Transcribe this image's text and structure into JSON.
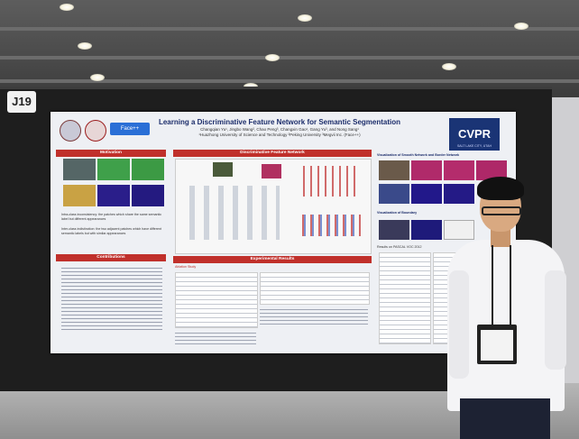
{
  "booth_sign": {
    "label": "J19"
  },
  "poster": {
    "title": "Learning a Discriminative Feature Network for Semantic Segmentation",
    "authors": "Changqian Yu¹, Jingbo Wang², Chao Peng³, Changxin Gao¹, Gang Yu³, and Nong Sang¹",
    "affiliations": "¹Huazhong University of Science and Technology  ²Peking University  ³Megvii Inc. (Face++)",
    "conference_logo": "CVPR",
    "conference_sub": "SALT LAKE CITY, UTAH",
    "sections": {
      "motivation": "Motivation",
      "contributions": "Contributions",
      "dfn": "Discriminative Feature Network",
      "results": "Experimental Results",
      "visualization_top": "Visualization of Smooth Network and Border Network",
      "visualization_bottom": "Visualization of Boundary"
    },
    "motivation_points": [
      "Intra-class inconsistency: the patches which share the same semantic label but different appearances",
      "Inter-class indistinction: the two adjacent patches which have different semantic labels but with similar appearances"
    ],
    "logos": [
      "HUST",
      "PKU",
      "Face++"
    ],
    "results_label": "Ablation Study",
    "results_caption": "Results on PASCAL VOC 2012"
  },
  "colors": {
    "section_header": "#c0302b",
    "title": "#1c2d6b",
    "poster_bg": "#eef0f4",
    "cvpr_logo": "#1a3475"
  }
}
